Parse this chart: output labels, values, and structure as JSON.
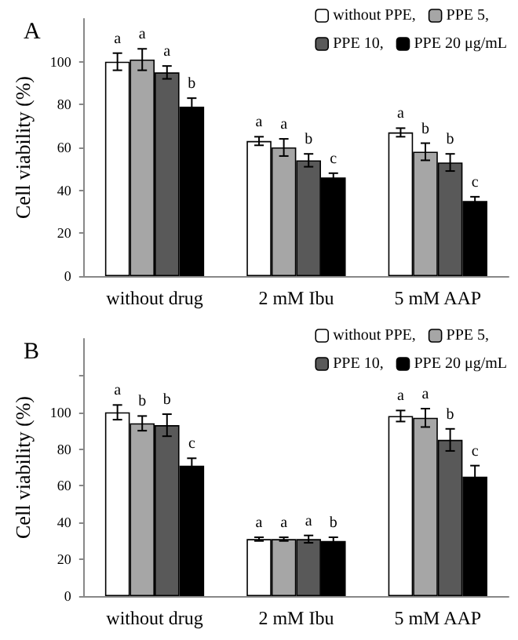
{
  "chart_data": [
    {
      "type": "bar",
      "title": "A",
      "ylabel": "Cell viability (%)",
      "categories": [
        "without drug",
        "2 mM Ibu",
        "5 mM AAP"
      ],
      "ylim": [
        0,
        120
      ],
      "yticks": [
        0,
        20,
        40,
        60,
        80,
        100
      ],
      "grid": false,
      "legend": "top right",
      "series": [
        {
          "name": "without PPE,",
          "color": "#ffffff",
          "values": [
            100,
            63,
            67
          ],
          "errors": [
            4,
            2,
            2
          ]
        },
        {
          "name": "PPE 5,",
          "color": "#a6a6a6",
          "values": [
            101,
            60,
            58
          ],
          "errors": [
            5,
            4,
            4
          ]
        },
        {
          "name": "PPE 10,",
          "color": "#595959",
          "values": [
            95,
            54,
            53
          ],
          "errors": [
            3,
            3,
            4
          ]
        },
        {
          "name": "PPE 20 μg/mL",
          "color": "#000000",
          "values": [
            79,
            46,
            35
          ],
          "errors": [
            4,
            2,
            2
          ]
        }
      ],
      "annotations": [
        "a",
        "a",
        "a",
        "b",
        "a",
        "a",
        "b",
        "c",
        "a",
        "b",
        "b",
        "c"
      ]
    },
    {
      "type": "bar",
      "title": "B",
      "ylabel": "Cell viability (%)",
      "categories": [
        "without drug",
        "2 mM Ibu",
        "5 mM AAP"
      ],
      "ylim": [
        0,
        140
      ],
      "yticks": [
        0,
        20,
        40,
        60,
        80,
        100,
        {
          "value": 120,
          "label": null
        }
      ],
      "grid": false,
      "legend": "top right",
      "series": [
        {
          "name": "without PPE,",
          "color": "#ffffff",
          "values": [
            100,
            31,
            98
          ],
          "errors": [
            4,
            1,
            3
          ]
        },
        {
          "name": "PPE 5,",
          "color": "#a6a6a6",
          "values": [
            94,
            31,
            97
          ],
          "errors": [
            4,
            1,
            5
          ]
        },
        {
          "name": "PPE 10,",
          "color": "#595959",
          "values": [
            93,
            31,
            85
          ],
          "errors": [
            6,
            2,
            6
          ]
        },
        {
          "name": "PPE 20 μg/mL",
          "color": "#000000",
          "values": [
            71,
            30,
            65
          ],
          "errors": [
            4,
            2,
            6
          ]
        }
      ],
      "annotations": [
        "a",
        "b",
        "b",
        "c",
        "a",
        "a",
        "a",
        "b",
        "a",
        "a",
        "b",
        "c"
      ]
    }
  ]
}
